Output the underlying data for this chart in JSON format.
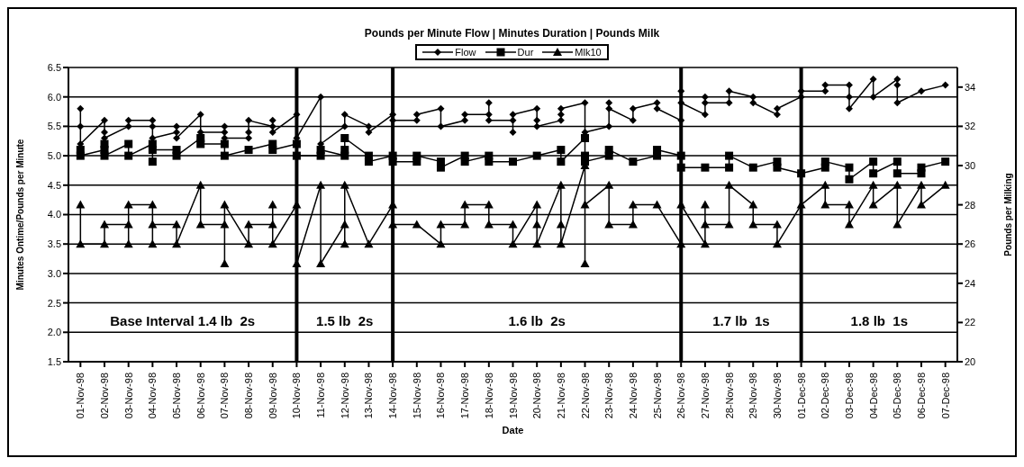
{
  "chart_data": {
    "type": "line",
    "title": "Pounds per Minute Flow  | Minutes Duration | Pounds Milk",
    "xlabel": "Date",
    "ylabel": "Minutes Ontime/Pounds per Minute",
    "y2label": "Pounds per Milking",
    "legend": "top",
    "grid": "y",
    "line_style": "solid",
    "xlim": [
      "1998-10-31T12:00",
      "1998-12-07T12:00"
    ],
    "xticks": [
      {
        "value": "1998-11-01",
        "label": "01-Nov-98"
      },
      {
        "value": "1998-11-02",
        "label": "02-Nov-98"
      },
      {
        "value": "1998-11-03",
        "label": "03-Nov-98"
      },
      {
        "value": "1998-11-04",
        "label": "04-Nov-98"
      },
      {
        "value": "1998-11-05",
        "label": "05-Nov-98"
      },
      {
        "value": "1998-11-06",
        "label": "06-Nov-98"
      },
      {
        "value": "1998-11-07",
        "label": "07-Nov-98"
      },
      {
        "value": "1998-11-08",
        "label": "08-Nov-98"
      },
      {
        "value": "1998-11-09",
        "label": "09-Nov-98"
      },
      {
        "value": "1998-11-10",
        "label": "10-Nov-98"
      },
      {
        "value": "1998-11-11",
        "label": "11-Nov-98"
      },
      {
        "value": "1998-11-12",
        "label": "12-Nov-98"
      },
      {
        "value": "1998-11-13",
        "label": "13-Nov-98"
      },
      {
        "value": "1998-11-14",
        "label": "14-Nov-98"
      },
      {
        "value": "1998-11-15",
        "label": "15-Nov-98"
      },
      {
        "value": "1998-11-16",
        "label": "16-Nov-98"
      },
      {
        "value": "1998-11-17",
        "label": "17-Nov-98"
      },
      {
        "value": "1998-11-18",
        "label": "18-Nov-98"
      },
      {
        "value": "1998-11-19",
        "label": "19-Nov-98"
      },
      {
        "value": "1998-11-20",
        "label": "20-Nov-98"
      },
      {
        "value": "1998-11-21",
        "label": "21-Nov-98"
      },
      {
        "value": "1998-11-22",
        "label": "22-Nov-98"
      },
      {
        "value": "1998-11-23",
        "label": "23-Nov-98"
      },
      {
        "value": "1998-11-24",
        "label": "24-Nov-98"
      },
      {
        "value": "1998-11-25",
        "label": "25-Nov-98"
      },
      {
        "value": "1998-11-26",
        "label": "26-Nov-98"
      },
      {
        "value": "1998-11-27",
        "label": "27-Nov-98"
      },
      {
        "value": "1998-11-28",
        "label": "28-Nov-98"
      },
      {
        "value": "1998-11-29",
        "label": "29-Nov-98"
      },
      {
        "value": "1998-11-30",
        "label": "30-Nov-98"
      },
      {
        "value": "1998-12-01",
        "label": "01-Dec-98"
      },
      {
        "value": "1998-12-02",
        "label": "02-Dec-98"
      },
      {
        "value": "1998-12-03",
        "label": "03-Dec-98"
      },
      {
        "value": "1998-12-04",
        "label": "04-Dec-98"
      },
      {
        "value": "1998-12-05",
        "label": "05-Dec-98"
      },
      {
        "value": "1998-12-06",
        "label": "06-Dec-98"
      },
      {
        "value": "1998-12-07",
        "label": "07-Dec-98"
      }
    ],
    "ylim": [
      1.5,
      6.5
    ],
    "yticks": [
      {
        "value": 1.5,
        "label": "1.5"
      },
      {
        "value": 2,
        "label": "2.0"
      },
      {
        "value": 2.5,
        "label": "2.5"
      },
      {
        "value": 3,
        "label": "3.0"
      },
      {
        "value": 3.5,
        "label": "3.5"
      },
      {
        "value": 4,
        "label": "4.0"
      },
      {
        "value": 4.5,
        "label": "4.5"
      },
      {
        "value": 5,
        "label": "5.0"
      },
      {
        "value": 5.5,
        "label": "5.5"
      },
      {
        "value": 6,
        "label": "6.0"
      },
      {
        "value": 6.5,
        "label": "6.5"
      }
    ],
    "y2lim": [
      20,
      35
    ],
    "y2ticks": [
      20,
      22,
      24,
      26,
      28,
      30,
      32,
      34
    ],
    "series": [
      {
        "name": "Flow",
        "color": "#000000",
        "marker": "diamond",
        "x": [
          "1998-11-01",
          "1998-11-01",
          "1998-11-01",
          "1998-11-02",
          "1998-11-02",
          "1998-11-02",
          "1998-11-03",
          "1998-11-03",
          "1998-11-04",
          "1998-11-04",
          "1998-11-04",
          "1998-11-05",
          "1998-11-05",
          "1998-11-05",
          "1998-11-06",
          "1998-11-06",
          "1998-11-07",
          "1998-11-07",
          "1998-11-07",
          "1998-11-08",
          "1998-11-08",
          "1998-11-08",
          "1998-11-09",
          "1998-11-09",
          "1998-11-09",
          "1998-11-10",
          "1998-11-10",
          "1998-11-11",
          "1998-11-11",
          "1998-11-12",
          "1998-11-12",
          "1998-11-13",
          "1998-11-13",
          "1998-11-14",
          "1998-11-14",
          "1998-11-15",
          "1998-11-15",
          "1998-11-16",
          "1998-11-16",
          "1998-11-17",
          "1998-11-17",
          "1998-11-18",
          "1998-11-18",
          "1998-11-18",
          "1998-11-19",
          "1998-11-19",
          "1998-11-19",
          "1998-11-20",
          "1998-11-20",
          "1998-11-20",
          "1998-11-21",
          "1998-11-21",
          "1998-11-21",
          "1998-11-22",
          "1998-11-22",
          "1998-11-23",
          "1998-11-23",
          "1998-11-23",
          "1998-11-24",
          "1998-11-24",
          "1998-11-25",
          "1998-11-25",
          "1998-11-26",
          "1998-11-26",
          "1998-11-26",
          "1998-11-27",
          "1998-11-27",
          "1998-11-27",
          "1998-11-28",
          "1998-11-28",
          "1998-11-29",
          "1998-11-29",
          "1998-11-30",
          "1998-11-30",
          "1998-12-01",
          "1998-12-01",
          "1998-12-02",
          "1998-12-02",
          "1998-12-03",
          "1998-12-03",
          "1998-12-03",
          "1998-12-04",
          "1998-12-04",
          "1998-12-05",
          "1998-12-05",
          "1998-12-05",
          "1998-12-06",
          "1998-12-07"
        ],
        "values": [
          5.8,
          5.5,
          5.2,
          5.6,
          5.4,
          5.3,
          5.5,
          5.6,
          5.6,
          5.5,
          5.3,
          5.4,
          5.5,
          5.3,
          5.7,
          5.4,
          5.4,
          5.5,
          5.3,
          5.3,
          5.4,
          5.6,
          5.5,
          5.6,
          5.4,
          5.7,
          5.3,
          6.0,
          5.2,
          5.5,
          5.7,
          5.5,
          5.4,
          5.7,
          5.6,
          5.6,
          5.7,
          5.8,
          5.5,
          5.6,
          5.7,
          5.7,
          5.9,
          5.6,
          5.6,
          5.4,
          5.7,
          5.8,
          5.6,
          5.5,
          5.6,
          5.7,
          5.8,
          5.9,
          5.4,
          5.5,
          5.9,
          5.8,
          5.6,
          5.8,
          5.9,
          5.8,
          5.6,
          6.1,
          5.9,
          5.7,
          6.0,
          5.9,
          5.9,
          6.1,
          6.0,
          5.9,
          5.7,
          5.8,
          6.0,
          6.1,
          6.1,
          6.2,
          6.2,
          6.0,
          5.8,
          6.3,
          6.0,
          6.3,
          6.2,
          5.9,
          6.1,
          6.2
        ]
      },
      {
        "name": "Dur",
        "color": "#000000",
        "marker": "square",
        "x": [
          "1998-11-01",
          "1998-11-01",
          "1998-11-02",
          "1998-11-02",
          "1998-11-02",
          "1998-11-03",
          "1998-11-03",
          "1998-11-04",
          "1998-11-04",
          "1998-11-04",
          "1998-11-05",
          "1998-11-05",
          "1998-11-06",
          "1998-11-06",
          "1998-11-07",
          "1998-11-07",
          "1998-11-08",
          "1998-11-09",
          "1998-11-09",
          "1998-11-10",
          "1998-11-10",
          "1998-11-11",
          "1998-11-11",
          "1998-11-12",
          "1998-11-12",
          "1998-11-12",
          "1998-11-13",
          "1998-11-13",
          "1998-11-14",
          "1998-11-14",
          "1998-11-15",
          "1998-11-15",
          "1998-11-16",
          "1998-11-16",
          "1998-11-17",
          "1998-11-17",
          "1998-11-18",
          "1998-11-18",
          "1998-11-19",
          "1998-11-20",
          "1998-11-21",
          "1998-11-21",
          "1998-11-22",
          "1998-11-22",
          "1998-11-22",
          "1998-11-23",
          "1998-11-23",
          "1998-11-24",
          "1998-11-25",
          "1998-11-25",
          "1998-11-26",
          "1998-11-26",
          "1998-11-27",
          "1998-11-28",
          "1998-11-28",
          "1998-11-29",
          "1998-11-30",
          "1998-11-30",
          "1998-12-01",
          "1998-12-02",
          "1998-12-02",
          "1998-12-03",
          "1998-12-03",
          "1998-12-04",
          "1998-12-04",
          "1998-12-05",
          "1998-12-05",
          "1998-12-06",
          "1998-12-06",
          "1998-12-07"
        ],
        "values": [
          5.1,
          5.0,
          5.1,
          5.2,
          5.0,
          5.2,
          5.0,
          5.2,
          4.9,
          5.1,
          5.1,
          5.0,
          5.3,
          5.2,
          5.2,
          5.0,
          5.1,
          5.2,
          5.1,
          5.2,
          5.0,
          5.0,
          5.1,
          5.0,
          5.1,
          5.3,
          5.0,
          4.9,
          5.0,
          4.9,
          4.9,
          5.0,
          4.9,
          4.8,
          5.0,
          4.9,
          5.0,
          4.9,
          4.9,
          5.0,
          5.1,
          4.9,
          5.3,
          5.0,
          4.9,
          5.0,
          5.1,
          4.9,
          5.0,
          5.1,
          5.0,
          4.8,
          4.8,
          4.8,
          5.0,
          4.8,
          4.9,
          4.8,
          4.7,
          4.8,
          4.9,
          4.8,
          4.6,
          4.9,
          4.7,
          4.9,
          4.7,
          4.7,
          4.8,
          4.9
        ]
      },
      {
        "name": "Mlk10",
        "color": "#000000",
        "marker": "triangle",
        "axis": "y2",
        "x": [
          "1998-11-01",
          "1998-11-01",
          "1998-11-02",
          "1998-11-02",
          "1998-11-03",
          "1998-11-03",
          "1998-11-03",
          "1998-11-04",
          "1998-11-04",
          "1998-11-04",
          "1998-11-05",
          "1998-11-05",
          "1998-11-06",
          "1998-11-06",
          "1998-11-07",
          "1998-11-07",
          "1998-11-07",
          "1998-11-08",
          "1998-11-08",
          "1998-11-09",
          "1998-11-09",
          "1998-11-09",
          "1998-11-10",
          "1998-11-10",
          "1998-11-11",
          "1998-11-11",
          "1998-11-12",
          "1998-11-12",
          "1998-11-12",
          "1998-11-13",
          "1998-11-14",
          "1998-11-14",
          "1998-11-15",
          "1998-11-16",
          "1998-11-16",
          "1998-11-17",
          "1998-11-17",
          "1998-11-18",
          "1998-11-18",
          "1998-11-19",
          "1998-11-19",
          "1998-11-20",
          "1998-11-20",
          "1998-11-20",
          "1998-11-21",
          "1998-11-21",
          "1998-11-21",
          "1998-11-22",
          "1998-11-22",
          "1998-11-22",
          "1998-11-23",
          "1998-11-23",
          "1998-11-24",
          "1998-11-24",
          "1998-11-25",
          "1998-11-26",
          "1998-11-26",
          "1998-11-27",
          "1998-11-27",
          "1998-11-27",
          "1998-11-28",
          "1998-11-28",
          "1998-11-29",
          "1998-11-29",
          "1998-11-30",
          "1998-11-30",
          "1998-12-01",
          "1998-12-02",
          "1998-12-02",
          "1998-12-03",
          "1998-12-03",
          "1998-12-04",
          "1998-12-04",
          "1998-12-05",
          "1998-12-05",
          "1998-12-06",
          "1998-12-06",
          "1998-12-07"
        ],
        "values": [
          28,
          26,
          26,
          27,
          27,
          26,
          28,
          28,
          26,
          27,
          27,
          26,
          29,
          27,
          27,
          25,
          28,
          26,
          27,
          27,
          28,
          26,
          28,
          25,
          29,
          25,
          27,
          26,
          29,
          26,
          28,
          27,
          27,
          26,
          27,
          27,
          28,
          28,
          27,
          27,
          26,
          28,
          27,
          26,
          29,
          27,
          26,
          30,
          25,
          28,
          29,
          27,
          27,
          28,
          28,
          26,
          28,
          26,
          28,
          27,
          27,
          29,
          28,
          27,
          27,
          26,
          28,
          29,
          28,
          28,
          27,
          29,
          28,
          29,
          27,
          29,
          28,
          29
        ]
      }
    ],
    "ref_lines": [
      {
        "axis": "x",
        "value": "1998-11-10",
        "color": "#000000"
      },
      {
        "axis": "x",
        "value": "1998-11-14",
        "color": "#000000"
      },
      {
        "axis": "x",
        "value": "1998-11-26",
        "color": "#000000"
      },
      {
        "axis": "x",
        "value": "1998-12-01",
        "color": "#000000"
      }
    ],
    "annotations": [
      "Base Interval 1.4 lb  2s",
      "1.5 lb  2s",
      "1.6 lb  2s",
      "1.7 lb  1s",
      "1.8 lb  1s"
    ]
  }
}
